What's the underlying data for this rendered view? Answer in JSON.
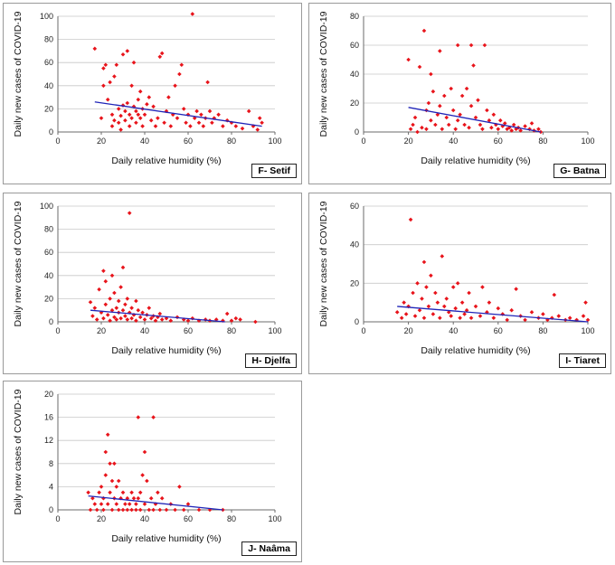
{
  "chart_data": [
    {
      "type": "scatter",
      "id": "F",
      "label": "F- Setif",
      "xlabel": "Daily relative humidity (%)",
      "ylabel": "Daily new cases of COVID-19",
      "xlim": [
        0,
        100
      ],
      "ylim": [
        0,
        100
      ],
      "xticks": [
        0,
        20,
        40,
        60,
        80,
        100
      ],
      "yticks": [
        0,
        20,
        40,
        60,
        80,
        100
      ],
      "trendline": [
        [
          17,
          26
        ],
        [
          94,
          5
        ]
      ],
      "points": [
        [
          17,
          72
        ],
        [
          20,
          12
        ],
        [
          21,
          40
        ],
        [
          21,
          55
        ],
        [
          22,
          58
        ],
        [
          23,
          28
        ],
        [
          24,
          43
        ],
        [
          25,
          5
        ],
        [
          25,
          15
        ],
        [
          26,
          48
        ],
        [
          26,
          10
        ],
        [
          27,
          58
        ],
        [
          28,
          20
        ],
        [
          28,
          8
        ],
        [
          29,
          14
        ],
        [
          29,
          2
        ],
        [
          30,
          23
        ],
        [
          30,
          67
        ],
        [
          31,
          10
        ],
        [
          31,
          18
        ],
        [
          32,
          70
        ],
        [
          32,
          25
        ],
        [
          33,
          15
        ],
        [
          33,
          5
        ],
        [
          34,
          12
        ],
        [
          34,
          40
        ],
        [
          35,
          60
        ],
        [
          35,
          22
        ],
        [
          36,
          18
        ],
        [
          36,
          8
        ],
        [
          37,
          15
        ],
        [
          37,
          28
        ],
        [
          38,
          35
        ],
        [
          38,
          12
        ],
        [
          39,
          20
        ],
        [
          39,
          5
        ],
        [
          40,
          15
        ],
        [
          41,
          24
        ],
        [
          42,
          30
        ],
        [
          43,
          10
        ],
        [
          44,
          22
        ],
        [
          45,
          5
        ],
        [
          46,
          12
        ],
        [
          47,
          65
        ],
        [
          48,
          68
        ],
        [
          49,
          8
        ],
        [
          50,
          18
        ],
        [
          51,
          30
        ],
        [
          52,
          5
        ],
        [
          53,
          15
        ],
        [
          54,
          40
        ],
        [
          55,
          12
        ],
        [
          56,
          50
        ],
        [
          57,
          58
        ],
        [
          58,
          20
        ],
        [
          59,
          8
        ],
        [
          60,
          15
        ],
        [
          61,
          5
        ],
        [
          62,
          102
        ],
        [
          63,
          12
        ],
        [
          64,
          18
        ],
        [
          65,
          8
        ],
        [
          66,
          15
        ],
        [
          67,
          5
        ],
        [
          68,
          12
        ],
        [
          69,
          43
        ],
        [
          70,
          18
        ],
        [
          71,
          8
        ],
        [
          72,
          12
        ],
        [
          74,
          15
        ],
        [
          76,
          5
        ],
        [
          78,
          10
        ],
        [
          80,
          8
        ],
        [
          82,
          5
        ],
        [
          85,
          3
        ],
        [
          88,
          18
        ],
        [
          90,
          5
        ],
        [
          92,
          2
        ],
        [
          93,
          12
        ],
        [
          94,
          8
        ]
      ]
    },
    {
      "type": "scatter",
      "id": "G",
      "label": "G- Batna",
      "xlabel": "Daily relative humidity (%)",
      "ylabel": "Daily new cases of COVID-19",
      "xlim": [
        0,
        100
      ],
      "ylim": [
        0,
        80
      ],
      "xticks": [
        0,
        20,
        40,
        60,
        80,
        100
      ],
      "yticks": [
        0,
        20,
        40,
        60,
        80
      ],
      "trendline": [
        [
          20,
          17
        ],
        [
          79,
          0
        ]
      ],
      "points": [
        [
          20,
          50
        ],
        [
          21,
          2
        ],
        [
          22,
          5
        ],
        [
          23,
          10
        ],
        [
          24,
          0
        ],
        [
          25,
          45
        ],
        [
          26,
          3
        ],
        [
          27,
          70
        ],
        [
          28,
          15
        ],
        [
          28,
          2
        ],
        [
          29,
          20
        ],
        [
          30,
          40
        ],
        [
          30,
          8
        ],
        [
          31,
          28
        ],
        [
          32,
          5
        ],
        [
          33,
          12
        ],
        [
          34,
          18
        ],
        [
          34,
          56
        ],
        [
          35,
          2
        ],
        [
          36,
          25
        ],
        [
          37,
          10
        ],
        [
          38,
          5
        ],
        [
          39,
          30
        ],
        [
          40,
          15
        ],
        [
          41,
          2
        ],
        [
          42,
          60
        ],
        [
          42,
          8
        ],
        [
          43,
          12
        ],
        [
          44,
          25
        ],
        [
          45,
          5
        ],
        [
          46,
          30
        ],
        [
          47,
          3
        ],
        [
          48,
          18
        ],
        [
          48,
          60
        ],
        [
          49,
          46
        ],
        [
          50,
          10
        ],
        [
          51,
          22
        ],
        [
          52,
          5
        ],
        [
          53,
          2
        ],
        [
          54,
          60
        ],
        [
          55,
          15
        ],
        [
          56,
          8
        ],
        [
          57,
          3
        ],
        [
          58,
          12
        ],
        [
          59,
          5
        ],
        [
          60,
          2
        ],
        [
          61,
          8
        ],
        [
          62,
          4
        ],
        [
          63,
          6
        ],
        [
          64,
          2
        ],
        [
          65,
          3
        ],
        [
          66,
          1
        ],
        [
          67,
          5
        ],
        [
          68,
          2
        ],
        [
          69,
          3
        ],
        [
          70,
          1
        ],
        [
          72,
          4
        ],
        [
          74,
          2
        ],
        [
          75,
          6
        ],
        [
          76,
          1
        ],
        [
          78,
          2
        ],
        [
          79,
          0
        ]
      ]
    },
    {
      "type": "scatter",
      "id": "H",
      "label": "H- Djelfa",
      "xlabel": "Daily relative humidity (%)",
      "ylabel": "Daily new cases of COVID-19",
      "xlim": [
        0,
        100
      ],
      "ylim": [
        0,
        100
      ],
      "xticks": [
        0,
        20,
        40,
        60,
        80,
        100
      ],
      "yticks": [
        0,
        20,
        40,
        60,
        80,
        100
      ],
      "trendline": [
        [
          15,
          10
        ],
        [
          77,
          0
        ]
      ],
      "points": [
        [
          15,
          17
        ],
        [
          16,
          5
        ],
        [
          17,
          12
        ],
        [
          18,
          2
        ],
        [
          19,
          28
        ],
        [
          20,
          8
        ],
        [
          21,
          44
        ],
        [
          21,
          3
        ],
        [
          22,
          15
        ],
        [
          22,
          35
        ],
        [
          23,
          6
        ],
        [
          24,
          20
        ],
        [
          24,
          1
        ],
        [
          25,
          40
        ],
        [
          25,
          10
        ],
        [
          26,
          25
        ],
        [
          26,
          4
        ],
        [
          27,
          12
        ],
        [
          27,
          2
        ],
        [
          28,
          18
        ],
        [
          28,
          8
        ],
        [
          29,
          30
        ],
        [
          29,
          3
        ],
        [
          30,
          47
        ],
        [
          30,
          10
        ],
        [
          31,
          5
        ],
        [
          31,
          15
        ],
        [
          32,
          20
        ],
        [
          32,
          2
        ],
        [
          33,
          94
        ],
        [
          33,
          8
        ],
        [
          34,
          12
        ],
        [
          34,
          3
        ],
        [
          35,
          6
        ],
        [
          36,
          18
        ],
        [
          36,
          1
        ],
        [
          37,
          10
        ],
        [
          38,
          4
        ],
        [
          39,
          8
        ],
        [
          40,
          2
        ],
        [
          41,
          6
        ],
        [
          42,
          12
        ],
        [
          43,
          3
        ],
        [
          44,
          5
        ],
        [
          45,
          1
        ],
        [
          46,
          4
        ],
        [
          47,
          7
        ],
        [
          48,
          2
        ],
        [
          50,
          3
        ],
        [
          52,
          1
        ],
        [
          55,
          4
        ],
        [
          58,
          2
        ],
        [
          60,
          1
        ],
        [
          62,
          3
        ],
        [
          65,
          1
        ],
        [
          68,
          2
        ],
        [
          70,
          1
        ],
        [
          73,
          2
        ],
        [
          76,
          1
        ],
        [
          78,
          7
        ],
        [
          80,
          1
        ],
        [
          82,
          3
        ],
        [
          84,
          2
        ],
        [
          91,
          0
        ]
      ]
    },
    {
      "type": "scatter",
      "id": "I",
      "label": "I- Tiaret",
      "xlabel": "Daily relative humidity (%)",
      "ylabel": "Daily new cases of COVID-19",
      "xlim": [
        0,
        100
      ],
      "ylim": [
        0,
        60
      ],
      "xticks": [
        0,
        20,
        40,
        60,
        80,
        100
      ],
      "yticks": [
        0,
        20,
        40,
        60
      ],
      "trendline": [
        [
          15,
          8
        ],
        [
          100,
          0
        ]
      ],
      "points": [
        [
          15,
          5
        ],
        [
          17,
          2
        ],
        [
          18,
          10
        ],
        [
          19,
          4
        ],
        [
          20,
          8
        ],
        [
          21,
          53
        ],
        [
          22,
          15
        ],
        [
          23,
          3
        ],
        [
          24,
          20
        ],
        [
          25,
          6
        ],
        [
          26,
          12
        ],
        [
          27,
          31
        ],
        [
          27,
          2
        ],
        [
          28,
          18
        ],
        [
          29,
          8
        ],
        [
          30,
          24
        ],
        [
          31,
          4
        ],
        [
          32,
          15
        ],
        [
          33,
          10
        ],
        [
          34,
          2
        ],
        [
          35,
          34
        ],
        [
          36,
          8
        ],
        [
          37,
          12
        ],
        [
          38,
          5
        ],
        [
          39,
          3
        ],
        [
          40,
          18
        ],
        [
          41,
          7
        ],
        [
          42,
          20
        ],
        [
          43,
          2
        ],
        [
          44,
          10
        ],
        [
          45,
          4
        ],
        [
          46,
          6
        ],
        [
          47,
          15
        ],
        [
          48,
          2
        ],
        [
          50,
          8
        ],
        [
          52,
          3
        ],
        [
          53,
          18
        ],
        [
          55,
          5
        ],
        [
          56,
          10
        ],
        [
          58,
          2
        ],
        [
          60,
          7
        ],
        [
          62,
          4
        ],
        [
          64,
          1
        ],
        [
          66,
          6
        ],
        [
          68,
          17
        ],
        [
          70,
          3
        ],
        [
          72,
          1
        ],
        [
          75,
          5
        ],
        [
          78,
          2
        ],
        [
          80,
          4
        ],
        [
          82,
          1
        ],
        [
          84,
          2
        ],
        [
          85,
          14
        ],
        [
          87,
          3
        ],
        [
          90,
          1
        ],
        [
          92,
          2
        ],
        [
          95,
          1
        ],
        [
          98,
          3
        ],
        [
          99,
          10
        ],
        [
          100,
          1
        ]
      ]
    },
    {
      "type": "scatter",
      "id": "J",
      "label": "J- Naâma",
      "xlabel": "Daily relative humidity (%)",
      "ylabel": "Daily new cases of COVID-19",
      "xlim": [
        0,
        100
      ],
      "ylim": [
        0,
        20
      ],
      "xticks": [
        0,
        20,
        40,
        60,
        80,
        100
      ],
      "yticks": [
        0,
        4,
        8,
        12,
        16,
        20
      ],
      "trendline": [
        [
          14,
          2.4
        ],
        [
          76,
          0
        ]
      ],
      "points": [
        [
          14,
          3
        ],
        [
          15,
          0
        ],
        [
          16,
          2
        ],
        [
          17,
          1
        ],
        [
          18,
          0
        ],
        [
          19,
          3
        ],
        [
          20,
          1
        ],
        [
          20,
          4
        ],
        [
          21,
          2
        ],
        [
          21,
          0
        ],
        [
          22,
          6
        ],
        [
          22,
          10
        ],
        [
          23,
          13
        ],
        [
          23,
          1
        ],
        [
          24,
          8
        ],
        [
          24,
          3
        ],
        [
          25,
          5
        ],
        [
          25,
          0
        ],
        [
          26,
          8
        ],
        [
          26,
          2
        ],
        [
          27,
          4
        ],
        [
          27,
          1
        ],
        [
          28,
          5
        ],
        [
          28,
          0
        ],
        [
          29,
          2
        ],
        [
          30,
          3
        ],
        [
          30,
          0
        ],
        [
          31,
          1
        ],
        [
          32,
          2
        ],
        [
          32,
          0
        ],
        [
          33,
          1
        ],
        [
          34,
          3
        ],
        [
          34,
          0
        ],
        [
          35,
          2
        ],
        [
          36,
          1
        ],
        [
          36,
          0
        ],
        [
          37,
          16
        ],
        [
          37,
          2
        ],
        [
          38,
          3
        ],
        [
          38,
          0
        ],
        [
          39,
          6
        ],
        [
          40,
          10
        ],
        [
          40,
          1
        ],
        [
          41,
          5
        ],
        [
          42,
          0
        ],
        [
          43,
          2
        ],
        [
          44,
          16
        ],
        [
          44,
          0
        ],
        [
          45,
          1
        ],
        [
          46,
          3
        ],
        [
          47,
          0
        ],
        [
          48,
          2
        ],
        [
          50,
          0
        ],
        [
          52,
          1
        ],
        [
          54,
          0
        ],
        [
          56,
          4
        ],
        [
          58,
          0
        ],
        [
          60,
          1
        ],
        [
          65,
          0
        ],
        [
          70,
          0
        ],
        [
          76,
          0
        ]
      ]
    }
  ]
}
